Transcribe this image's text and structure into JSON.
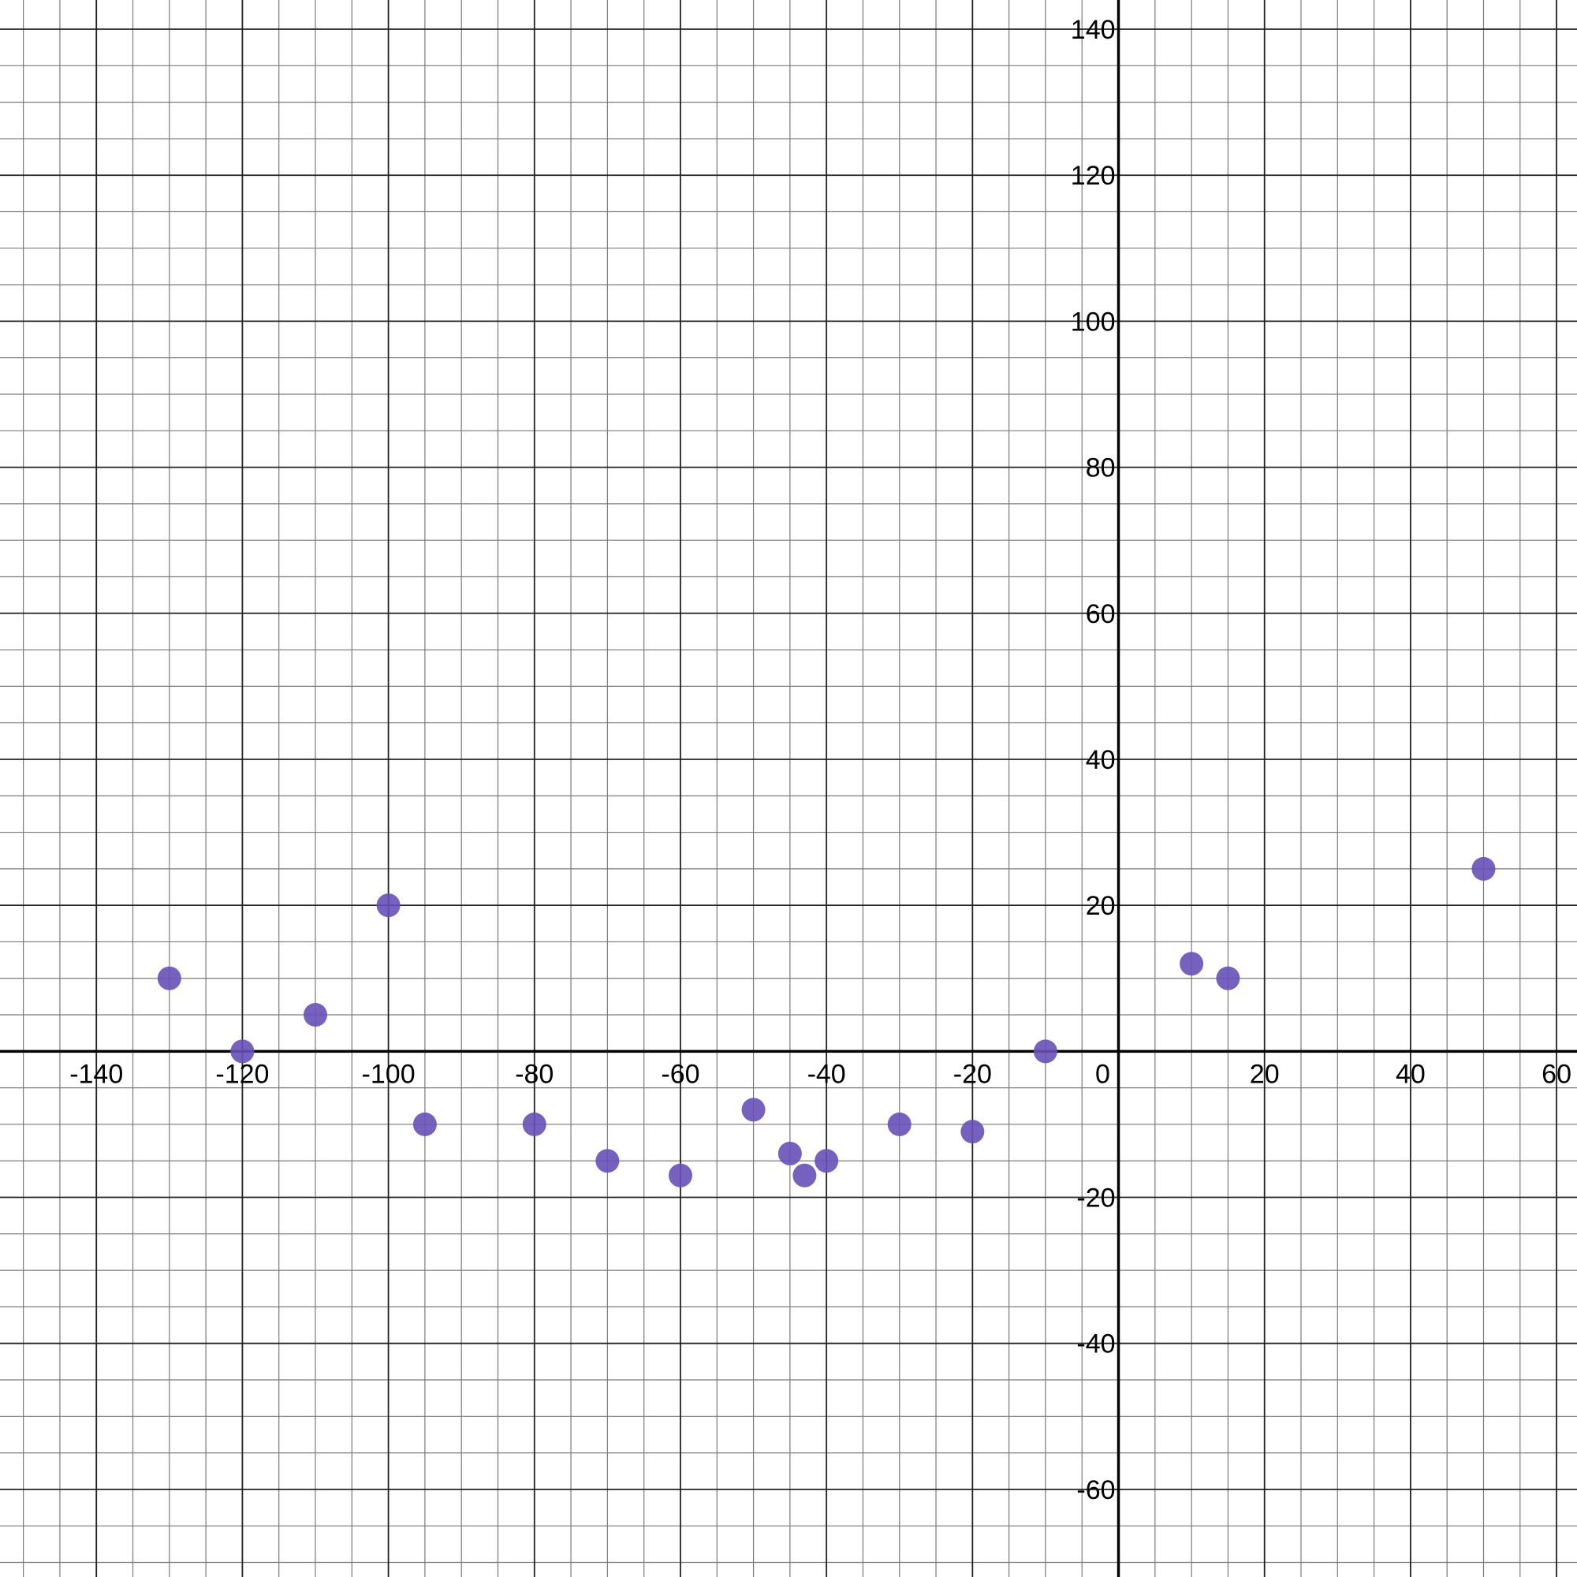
{
  "chart_data": {
    "type": "scatter",
    "title": "",
    "xlabel": "",
    "ylabel": "",
    "xlim": [
      -153.2,
      62.8
    ],
    "ylim": [
      -72.0,
      144.0
    ],
    "grid": true,
    "minor_grid_step": 5,
    "major_grid_step": 20,
    "x_ticks": [
      -140,
      -120,
      -100,
      -80,
      -60,
      -40,
      -20,
      0,
      20,
      40,
      60
    ],
    "y_ticks": [
      140,
      120,
      100,
      80,
      60,
      40,
      20,
      -20,
      -40,
      -60
    ],
    "colors": {
      "points": "#6750b8",
      "minor_grid": "#7a7a7a",
      "major_grid": "#222222",
      "axis": "#000000"
    },
    "series": [
      {
        "points": [
          {
            "x": -130,
            "y": 10
          },
          {
            "x": -120,
            "y": 0
          },
          {
            "x": -110,
            "y": 5
          },
          {
            "x": -100,
            "y": 20
          },
          {
            "x": -95,
            "y": -10
          },
          {
            "x": -80,
            "y": -10
          },
          {
            "x": -70,
            "y": -15
          },
          {
            "x": -60,
            "y": -17
          },
          {
            "x": -50,
            "y": -8
          },
          {
            "x": -45,
            "y": -14
          },
          {
            "x": -43,
            "y": -17
          },
          {
            "x": -40,
            "y": -15
          },
          {
            "x": -30,
            "y": -10
          },
          {
            "x": -20,
            "y": -11
          },
          {
            "x": -10,
            "y": 0
          },
          {
            "x": 10,
            "y": 12
          },
          {
            "x": 15,
            "y": 10
          },
          {
            "x": 50,
            "y": 25
          }
        ]
      }
    ]
  }
}
